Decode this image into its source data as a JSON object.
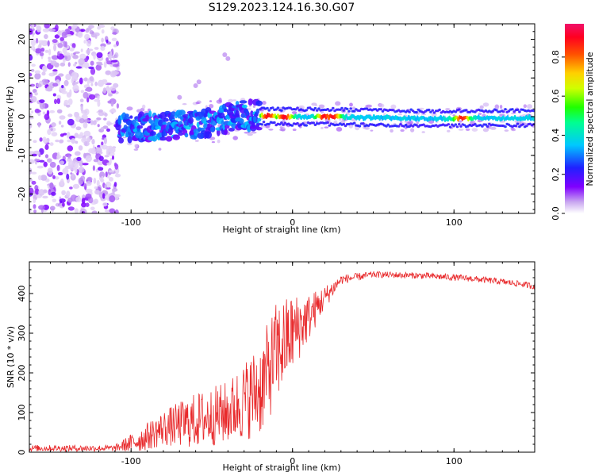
{
  "title": "S129.2023.124.16.30.G07",
  "colors": {
    "snr_line": "#e8292b",
    "axis": "#000000",
    "background": "#ffffff"
  },
  "chart_data": [
    {
      "type": "heatmap",
      "title": "S129.2023.124.16.30.G07",
      "xlabel": "Height of straight line (km)",
      "ylabel": "Frequency (Hz)",
      "xlim": [
        -163,
        150
      ],
      "ylim": [
        -25,
        24
      ],
      "xticks": [
        -100,
        0,
        100
      ],
      "yticks": [
        -20,
        -10,
        0,
        10,
        20
      ],
      "grid": false,
      "colorbar": {
        "label": "Normalized spectral amplitude",
        "range": [
          0,
          0.97
        ],
        "ticks": [
          "0.0",
          "0.2",
          "0.4",
          "0.6",
          "0.8"
        ],
        "colormap": "rainbow (white-purple-blue-cyan-green-yellow-red-magenta)"
      },
      "features": {
        "scattered_noise_region_km": [
          -163,
          -108
        ],
        "noise_amplitude": 0.05,
        "ridge_frequency_hz": 0,
        "ridge_center_freq_by_height": [
          {
            "x": -110,
            "y": -3
          },
          {
            "x": -60,
            "y": -2
          },
          {
            "x": -30,
            "y": 0.5
          },
          {
            "x": -10,
            "y": 0
          },
          {
            "x": 20,
            "y": 0
          },
          {
            "x": 80,
            "y": -0.5
          },
          {
            "x": 150,
            "y": -0.3
          }
        ],
        "peak_amplitude_locations_km": [
          -15,
          -5,
          20,
          25,
          105
        ]
      }
    },
    {
      "type": "line",
      "xlabel": "Height of straight line (km)",
      "ylabel": "SNR (10 * v/v)",
      "xlim": [
        -163,
        150
      ],
      "ylim": [
        0,
        480
      ],
      "xticks": [
        -100,
        0,
        100
      ],
      "yticks": [
        0,
        100,
        200,
        300,
        400
      ],
      "grid": false,
      "series": [
        {
          "color": "#e8292b",
          "envelope": [
            {
              "x": -163,
              "mean": 10,
              "noise": 8
            },
            {
              "x": -110,
              "mean": 10,
              "noise": 8
            },
            {
              "x": -95,
              "mean": 30,
              "noise": 30
            },
            {
              "x": -80,
              "mean": 60,
              "noise": 45
            },
            {
              "x": -60,
              "mean": 80,
              "noise": 70
            },
            {
              "x": -40,
              "mean": 100,
              "noise": 80
            },
            {
              "x": -20,
              "mean": 160,
              "noise": 120
            },
            {
              "x": -10,
              "mean": 250,
              "noise": 130
            },
            {
              "x": 0,
              "mean": 300,
              "noise": 100
            },
            {
              "x": 10,
              "mean": 340,
              "noise": 60
            },
            {
              "x": 20,
              "mean": 390,
              "noise": 30
            },
            {
              "x": 30,
              "mean": 435,
              "noise": 12
            },
            {
              "x": 50,
              "mean": 448,
              "noise": 8
            },
            {
              "x": 80,
              "mean": 445,
              "noise": 8
            },
            {
              "x": 110,
              "mean": 438,
              "noise": 8
            },
            {
              "x": 140,
              "mean": 425,
              "noise": 8
            },
            {
              "x": 150,
              "mean": 418,
              "noise": 8
            }
          ]
        }
      ]
    }
  ]
}
